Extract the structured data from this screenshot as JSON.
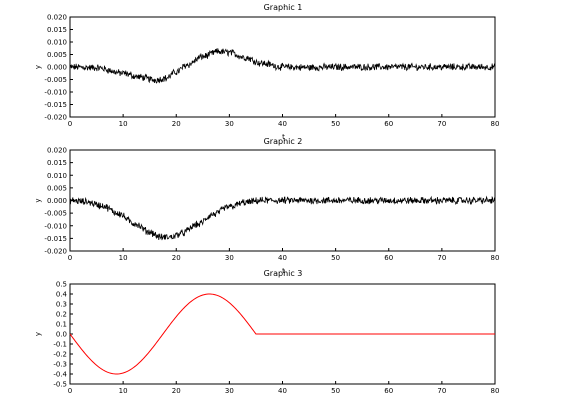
{
  "figure": {
    "background": "#ffffff",
    "axis_color": "#000000"
  },
  "chart_data": [
    {
      "type": "line",
      "title": "Graphic 1",
      "xlabel": "t",
      "ylabel": "y",
      "xlim": [
        0,
        80
      ],
      "ylim": [
        -0.02,
        0.02
      ],
      "grid": false,
      "xticks": [
        "0",
        "10",
        "20",
        "30",
        "40",
        "50",
        "60",
        "70",
        "80"
      ],
      "yticks": [
        "-0.020",
        "-0.015",
        "-0.010",
        "-0.005",
        "0.000",
        "0.005",
        "0.010",
        "0.015",
        "0.020"
      ],
      "series": [
        {
          "color": "#000000",
          "noise": "high-frequency, amplitude about 0.0012",
          "x": [
            0,
            5,
            10,
            13,
            16,
            18,
            20,
            22,
            25,
            28,
            30,
            33,
            36,
            40,
            45,
            50,
            60,
            70,
            80
          ],
          "y": [
            0.0,
            -0.0003,
            -0.0025,
            -0.004,
            -0.0052,
            -0.0045,
            -0.002,
            0.0008,
            0.0042,
            0.0062,
            0.0058,
            0.0038,
            0.0015,
            0.0,
            -0.0002,
            0.0,
            0.0,
            0.0,
            0.0
          ]
        }
      ]
    },
    {
      "type": "line",
      "title": "Graphic 2",
      "xlabel": "t",
      "ylabel": "y",
      "xlim": [
        0,
        80
      ],
      "ylim": [
        -0.02,
        0.02
      ],
      "grid": false,
      "xticks": [
        "0",
        "10",
        "20",
        "30",
        "40",
        "50",
        "60",
        "70",
        "80"
      ],
      "yticks": [
        "-0.020",
        "-0.015",
        "-0.010",
        "-0.005",
        "0.000",
        "0.005",
        "0.010",
        "0.015",
        "0.020"
      ],
      "series": [
        {
          "color": "#000000",
          "noise": "high-frequency, amplitude about 0.0012",
          "x": [
            0,
            3,
            6,
            9,
            12,
            15,
            17,
            19,
            21,
            24,
            27,
            30,
            33,
            36,
            40,
            50,
            60,
            70,
            80
          ],
          "y": [
            0.0,
            -0.0005,
            -0.002,
            -0.005,
            -0.009,
            -0.0125,
            -0.0145,
            -0.0145,
            -0.013,
            -0.0095,
            -0.0055,
            -0.0025,
            -0.0008,
            0.0,
            0.0,
            0.0,
            0.0,
            0.0,
            0.0
          ]
        }
      ]
    },
    {
      "type": "line",
      "title": "Graphic 3",
      "xlabel": "t",
      "ylabel": "y",
      "xlim": [
        0,
        80
      ],
      "ylim": [
        -0.5,
        0.5
      ],
      "grid": false,
      "xticks": [
        "0",
        "10",
        "20",
        "30",
        "40",
        "50",
        "60",
        "70",
        "80"
      ],
      "yticks": [
        "-0.5",
        "-0.4",
        "-0.3",
        "-0.2",
        "-0.1",
        "0.0",
        "0.1",
        "0.2",
        "0.3",
        "0.4",
        "0.5"
      ],
      "series": [
        {
          "color": "#ff0000",
          "shape": "one full sine period from t=0 to t=35, amplitude 0.4, negative lobe first, then flat at 0",
          "x": [
            0,
            35,
            80
          ],
          "y": [
            0,
            0,
            0
          ]
        }
      ]
    }
  ]
}
